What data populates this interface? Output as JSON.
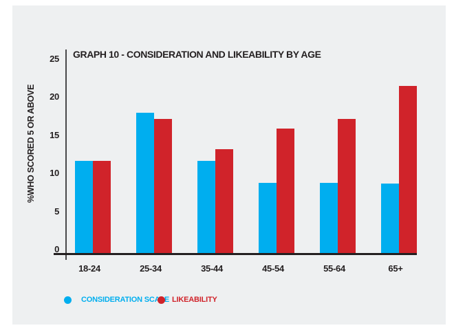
{
  "window": {
    "background": "#ffffff",
    "panel_background": "#eef0f1",
    "text_color": "#231f20"
  },
  "chart_data": {
    "type": "bar",
    "title": "GRAPH 10 - CONSIDERATION AND LIKEABILITY BY AGE",
    "ylabel": "%WHO SCORED 5 OR ABOVE",
    "xlabel": "",
    "categories": [
      "18-24",
      "25-34",
      "35-44",
      "45-54",
      "55-64",
      "65+"
    ],
    "series": [
      {
        "name": "CONSIDERATION SCALE",
        "color": "#00aeef",
        "values": [
          11.9,
          18.0,
          11.9,
          9.1,
          9.1,
          9.0
        ]
      },
      {
        "name": "LIKEABILITY",
        "color": "#d0232a",
        "values": [
          11.9,
          17.2,
          13.4,
          16.0,
          17.2,
          21.4
        ]
      }
    ],
    "yticks": [
      0,
      5,
      10,
      15,
      20,
      25
    ],
    "ylim": [
      0,
      25
    ],
    "grid": false,
    "legend_position": "bottom-left",
    "legend_marker": "circle"
  }
}
